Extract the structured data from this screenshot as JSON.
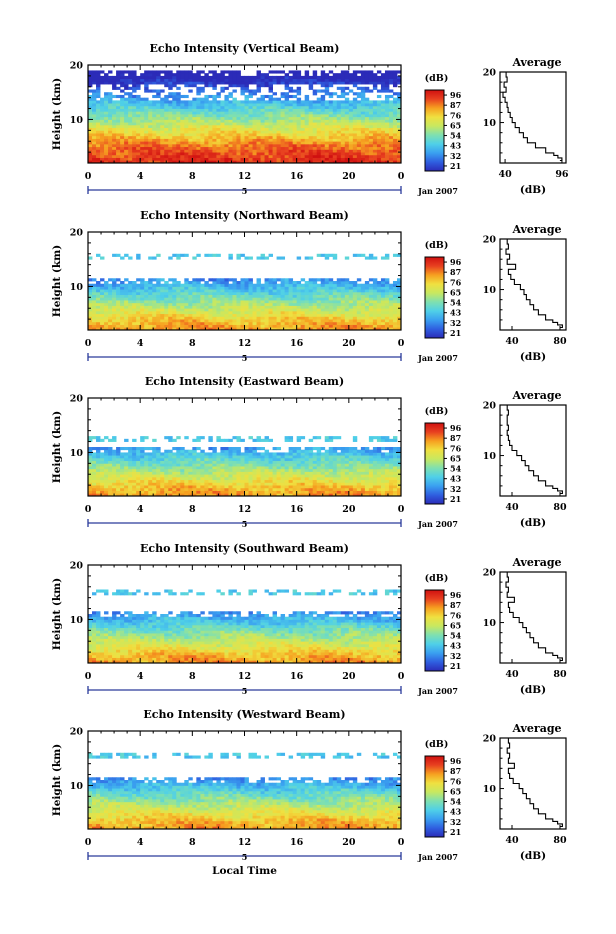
{
  "chart_data": [
    {
      "type": "heatmap",
      "title": "Echo Intensity (Vertical Beam)",
      "ylabel": "Height (km)",
      "xlim": [
        0,
        24
      ],
      "ylim": [
        2,
        20
      ],
      "x_ticks": [
        "0",
        "4",
        "8",
        "12",
        "16",
        "20",
        "0"
      ],
      "y_ticks": [
        "20",
        "10"
      ],
      "date_marker": "5",
      "date_label": "Jan 2007",
      "colorbar": {
        "unit": "(dB)",
        "ticks": [
          "96",
          "87",
          "76",
          "65",
          "54",
          "43",
          "32",
          "21"
        ],
        "min": 21,
        "max": 96
      },
      "average": {
        "title": "Average",
        "xlabel": "(dB)",
        "x_ticks": [
          "40",
          "96"
        ],
        "y_ticks": [
          "20",
          "10"
        ],
        "xlim": [
          35,
          100
        ],
        "profile": [
          [
            2.5,
            94
          ],
          [
            3.0,
            96
          ],
          [
            3.5,
            92
          ],
          [
            4.0,
            88
          ],
          [
            5.0,
            80
          ],
          [
            6.0,
            70
          ],
          [
            7.0,
            62
          ],
          [
            8.0,
            58
          ],
          [
            9.0,
            54
          ],
          [
            10.0,
            50
          ],
          [
            11.0,
            47
          ],
          [
            12.0,
            45
          ],
          [
            13.0,
            43
          ],
          [
            14.0,
            42
          ],
          [
            15.0,
            40
          ],
          [
            16.0,
            38
          ],
          [
            17.0,
            41
          ],
          [
            18.0,
            39
          ],
          [
            19.0,
            42
          ],
          [
            20.0,
            41
          ]
        ]
      },
      "field": {
        "top_km": 19.0,
        "gap_km": [
          13.5,
          16.5
        ],
        "sparse_km": [
          11.5,
          13.5
        ],
        "strong_km": 5.0,
        "surface_db": 92,
        "upper_db": 40
      }
    },
    {
      "type": "heatmap",
      "title": "Echo Intensity (Northward Beam)",
      "ylabel": "Height (km)",
      "xlim": [
        0,
        24
      ],
      "ylim": [
        2,
        20
      ],
      "x_ticks": [
        "0",
        "4",
        "8",
        "12",
        "16",
        "20",
        "0"
      ],
      "y_ticks": [
        "20",
        "10"
      ],
      "date_marker": "5",
      "date_label": "Jan 2007",
      "colorbar": {
        "unit": "(dB)",
        "ticks": [
          "96",
          "87",
          "76",
          "65",
          "54",
          "43",
          "32",
          "21"
        ],
        "min": 21,
        "max": 96
      },
      "average": {
        "title": "Average",
        "xlabel": "(dB)",
        "x_ticks": [
          "40",
          "80"
        ],
        "y_ticks": [
          "20",
          "10"
        ],
        "xlim": [
          30,
          85
        ],
        "profile": [
          [
            2.5,
            80
          ],
          [
            3.0,
            82
          ],
          [
            3.5,
            78
          ],
          [
            4.0,
            74
          ],
          [
            5.0,
            68
          ],
          [
            6.0,
            62
          ],
          [
            7.0,
            58
          ],
          [
            8.0,
            55
          ],
          [
            9.0,
            52
          ],
          [
            10.0,
            50
          ],
          [
            11.0,
            47
          ],
          [
            12.0,
            42
          ],
          [
            13.0,
            39
          ],
          [
            14.0,
            37
          ],
          [
            15.0,
            43
          ],
          [
            16.0,
            36
          ],
          [
            17.0,
            38
          ],
          [
            18.0,
            35
          ],
          [
            19.0,
            37
          ],
          [
            20.0,
            36
          ]
        ]
      },
      "field": {
        "top_km": 11.5,
        "gap_km": [
          0,
          0
        ],
        "sparse_km": [
          15,
          16
        ],
        "strong_km": 3.5,
        "surface_db": 80,
        "upper_db": 40
      }
    },
    {
      "type": "heatmap",
      "title": "Echo Intensity (Eastward Beam)",
      "ylabel": "Height (km)",
      "xlim": [
        0,
        24
      ],
      "ylim": [
        2,
        20
      ],
      "x_ticks": [
        "0",
        "4",
        "8",
        "12",
        "16",
        "20",
        "0"
      ],
      "y_ticks": [
        "20",
        "10"
      ],
      "date_marker": "5",
      "date_label": "Jan 2007",
      "colorbar": {
        "unit": "(dB)",
        "ticks": [
          "96",
          "87",
          "76",
          "65",
          "54",
          "43",
          "32",
          "21"
        ],
        "min": 21,
        "max": 96
      },
      "average": {
        "title": "Average",
        "xlabel": "(dB)",
        "x_ticks": [
          "40",
          "80"
        ],
        "y_ticks": [
          "20",
          "10"
        ],
        "xlim": [
          30,
          85
        ],
        "profile": [
          [
            2.5,
            80
          ],
          [
            3.0,
            82
          ],
          [
            3.5,
            78
          ],
          [
            4.0,
            74
          ],
          [
            5.0,
            68
          ],
          [
            6.0,
            62
          ],
          [
            7.0,
            58
          ],
          [
            8.0,
            54
          ],
          [
            9.0,
            51
          ],
          [
            10.0,
            48
          ],
          [
            11.0,
            44
          ],
          [
            12.0,
            40
          ],
          [
            13.0,
            38
          ],
          [
            14.0,
            37
          ],
          [
            15.0,
            36
          ],
          [
            16.0,
            37
          ],
          [
            17.0,
            36
          ],
          [
            18.0,
            36
          ],
          [
            19.0,
            37
          ],
          [
            20.0,
            36
          ]
        ]
      },
      "field": {
        "top_km": 11.0,
        "gap_km": [
          0,
          0
        ],
        "sparse_km": [
          12,
          13
        ],
        "strong_km": 3.5,
        "surface_db": 80,
        "upper_db": 40
      }
    },
    {
      "type": "heatmap",
      "title": "Echo Intensity (Southward Beam)",
      "ylabel": "Height (km)",
      "xlim": [
        0,
        24
      ],
      "ylim": [
        2,
        20
      ],
      "x_ticks": [
        "0",
        "4",
        "8",
        "12",
        "16",
        "20",
        "0"
      ],
      "y_ticks": [
        "20",
        "10"
      ],
      "date_marker": "5",
      "date_label": "Jan 2007",
      "colorbar": {
        "unit": "(dB)",
        "ticks": [
          "96",
          "87",
          "76",
          "65",
          "54",
          "43",
          "32",
          "21"
        ],
        "min": 21,
        "max": 96
      },
      "average": {
        "title": "Average",
        "xlabel": "(dB)",
        "x_ticks": [
          "40",
          "80"
        ],
        "y_ticks": [
          "20",
          "10"
        ],
        "xlim": [
          30,
          85
        ],
        "profile": [
          [
            2.5,
            80
          ],
          [
            3.0,
            82
          ],
          [
            3.5,
            78
          ],
          [
            4.0,
            74
          ],
          [
            5.0,
            68
          ],
          [
            6.0,
            62
          ],
          [
            7.0,
            58
          ],
          [
            8.0,
            55
          ],
          [
            9.0,
            52
          ],
          [
            10.0,
            49
          ],
          [
            11.0,
            46
          ],
          [
            12.0,
            41
          ],
          [
            13.0,
            38
          ],
          [
            14.0,
            37
          ],
          [
            15.0,
            42
          ],
          [
            16.0,
            36
          ],
          [
            17.0,
            37
          ],
          [
            18.0,
            35
          ],
          [
            19.0,
            37
          ],
          [
            20.0,
            36
          ]
        ]
      },
      "field": {
        "top_km": 11.5,
        "gap_km": [
          0,
          0
        ],
        "sparse_km": [
          14.5,
          15.5
        ],
        "strong_km": 3.5,
        "surface_db": 80,
        "upper_db": 40
      }
    },
    {
      "type": "heatmap",
      "title": "Echo Intensity (Westward Beam)",
      "ylabel": "Height (km)",
      "xlim": [
        0,
        24
      ],
      "ylim": [
        2,
        20
      ],
      "x_ticks": [
        "0",
        "4",
        "8",
        "12",
        "16",
        "20",
        "0"
      ],
      "y_ticks": [
        "20",
        "10"
      ],
      "date_marker": "5",
      "date_label": "Jan 2007",
      "xlabel": "Local Time",
      "colorbar": {
        "unit": "(dB)",
        "ticks": [
          "96",
          "87",
          "76",
          "65",
          "54",
          "43",
          "32",
          "21"
        ],
        "min": 21,
        "max": 96
      },
      "average": {
        "title": "Average",
        "xlabel": "(dB)",
        "x_ticks": [
          "40",
          "80"
        ],
        "y_ticks": [
          "20",
          "10"
        ],
        "xlim": [
          30,
          85
        ],
        "profile": [
          [
            2.5,
            80
          ],
          [
            3.0,
            82
          ],
          [
            3.5,
            78
          ],
          [
            4.0,
            74
          ],
          [
            5.0,
            68
          ],
          [
            6.0,
            62
          ],
          [
            7.0,
            58
          ],
          [
            8.0,
            55
          ],
          [
            9.0,
            52
          ],
          [
            10.0,
            49
          ],
          [
            11.0,
            46
          ],
          [
            12.0,
            41
          ],
          [
            13.0,
            38
          ],
          [
            14.0,
            37
          ],
          [
            15.0,
            42
          ],
          [
            16.0,
            37
          ],
          [
            17.0,
            38
          ],
          [
            18.0,
            36
          ],
          [
            19.0,
            38
          ],
          [
            20.0,
            37
          ]
        ]
      },
      "field": {
        "top_km": 11.5,
        "gap_km": [
          0,
          0
        ],
        "sparse_km": [
          15,
          16
        ],
        "strong_km": 3.5,
        "surface_db": 80,
        "upper_db": 40
      }
    }
  ],
  "colors": {
    "scale": [
      "#2b2bb8",
      "#2f5fe0",
      "#3aa0f0",
      "#4fd0e8",
      "#7fe0b0",
      "#c8e860",
      "#f0e040",
      "#f6a020",
      "#e84020",
      "#d01010"
    ]
  }
}
